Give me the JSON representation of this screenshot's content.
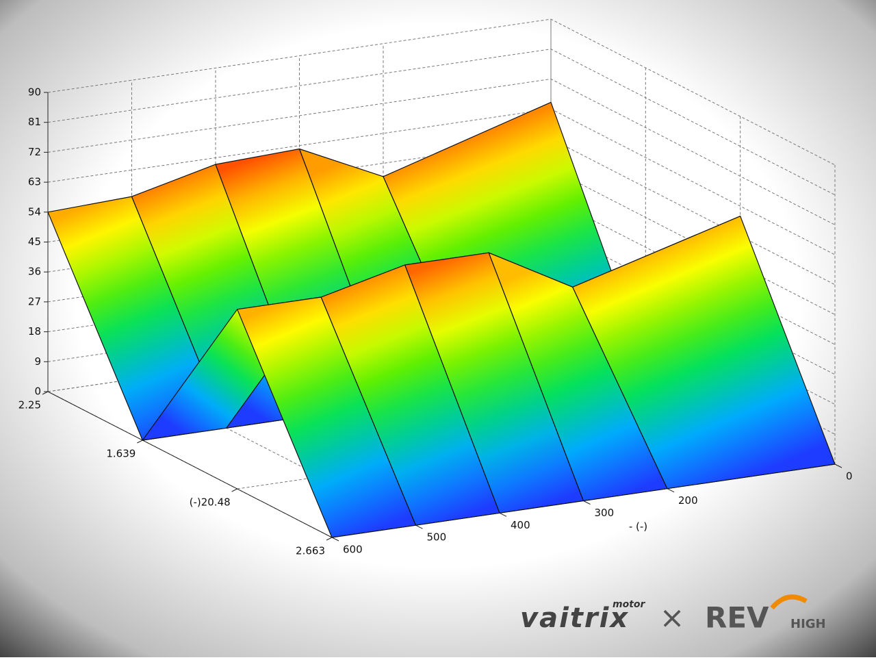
{
  "chart_data": {
    "type": "surface",
    "x": [
      600,
      500,
      400,
      300,
      200,
      0
    ],
    "xlim": [
      0,
      600
    ],
    "xticks": [
      600,
      500,
      400,
      300,
      200,
      0
    ],
    "x_label": "-  (-)",
    "depth_categories": [
      "2.25",
      "1.639",
      "(-)20.48",
      "2.663"
    ],
    "z": [
      [
        54,
        55,
        61,
        62,
        50,
        65
      ],
      [
        0,
        0,
        0,
        0,
        0,
        0
      ],
      [
        54,
        54,
        60,
        60,
        46,
        60
      ],
      [
        0,
        0,
        0,
        0,
        0,
        0
      ]
    ],
    "zlim": [
      0,
      90
    ],
    "zticks": [
      0,
      9,
      18,
      27,
      36,
      45,
      54,
      63,
      72,
      81,
      90
    ],
    "grid": true
  },
  "logos": {
    "brand": "vaitrix",
    "brand_sub": "motor",
    "separator": "×",
    "partner": "REV",
    "partner_sub": "HIGH"
  }
}
